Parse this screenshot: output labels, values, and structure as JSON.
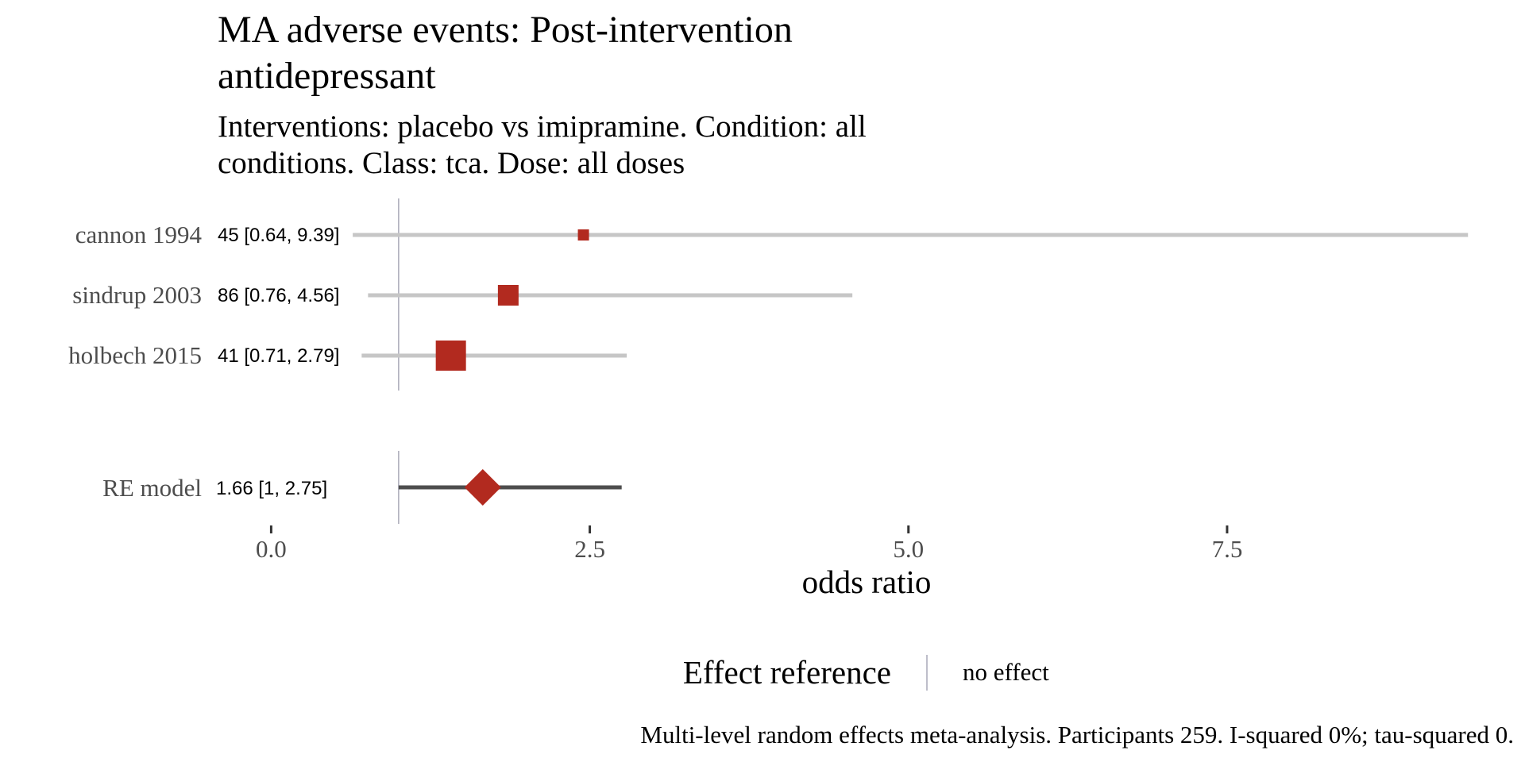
{
  "chart_data": {
    "type": "forest",
    "title": "MA adverse events: Post-intervention antidepressant",
    "title_lines": [
      "MA adverse events: Post-intervention",
      "antidepressant"
    ],
    "subtitle": "Interventions: placebo vs imipramine. Condition: all conditions. Class: tca. Dose: all doses",
    "subtitle_lines": [
      "Interventions: placebo vs imipramine. Condition: all",
      "conditions. Class: tca. Dose: all doses"
    ],
    "xlabel": "odds ratio",
    "xlim": [
      -0.42,
      9.75
    ],
    "x_ticks": [
      0,
      2.5,
      5,
      7.5
    ],
    "x_tick_labels": [
      "0.0",
      "2.5",
      "5.0",
      "7.5"
    ],
    "reference_line": 1,
    "studies": [
      {
        "label": "cannon 1994",
        "estimate_text": "45 [0.64, 9.39]",
        "estimate": 2.45,
        "lower": 0.64,
        "upper": 9.39,
        "weight": 1
      },
      {
        "label": "sindrup 2003",
        "estimate_text": "86 [0.76, 4.56]",
        "estimate": 1.86,
        "lower": 0.76,
        "upper": 4.56,
        "weight": 2.5
      },
      {
        "label": "holbech 2015",
        "estimate_text": "41 [0.71, 2.79]",
        "estimate": 1.41,
        "lower": 0.71,
        "upper": 2.79,
        "weight": 4
      }
    ],
    "summary": {
      "label": "RE model",
      "estimate_text": "1.66 [1, 2.75]",
      "estimate": 1.66,
      "lower": 1.0,
      "upper": 2.75
    },
    "legend": {
      "title": "Effect reference",
      "entry": "no effect",
      "position": "bottom"
    },
    "caption": "Multi-level random effects meta-analysis. Participants 259. I-squared 0%; tau-squared 0.",
    "colors": {
      "point": "#b22a1f",
      "ci_study": "#c6c6c6",
      "ci_summary": "#4d4d4d",
      "reference": "#a9a9b8",
      "label_text": "#4d4d4d",
      "text": "#000000",
      "tick": "#333333"
    }
  }
}
